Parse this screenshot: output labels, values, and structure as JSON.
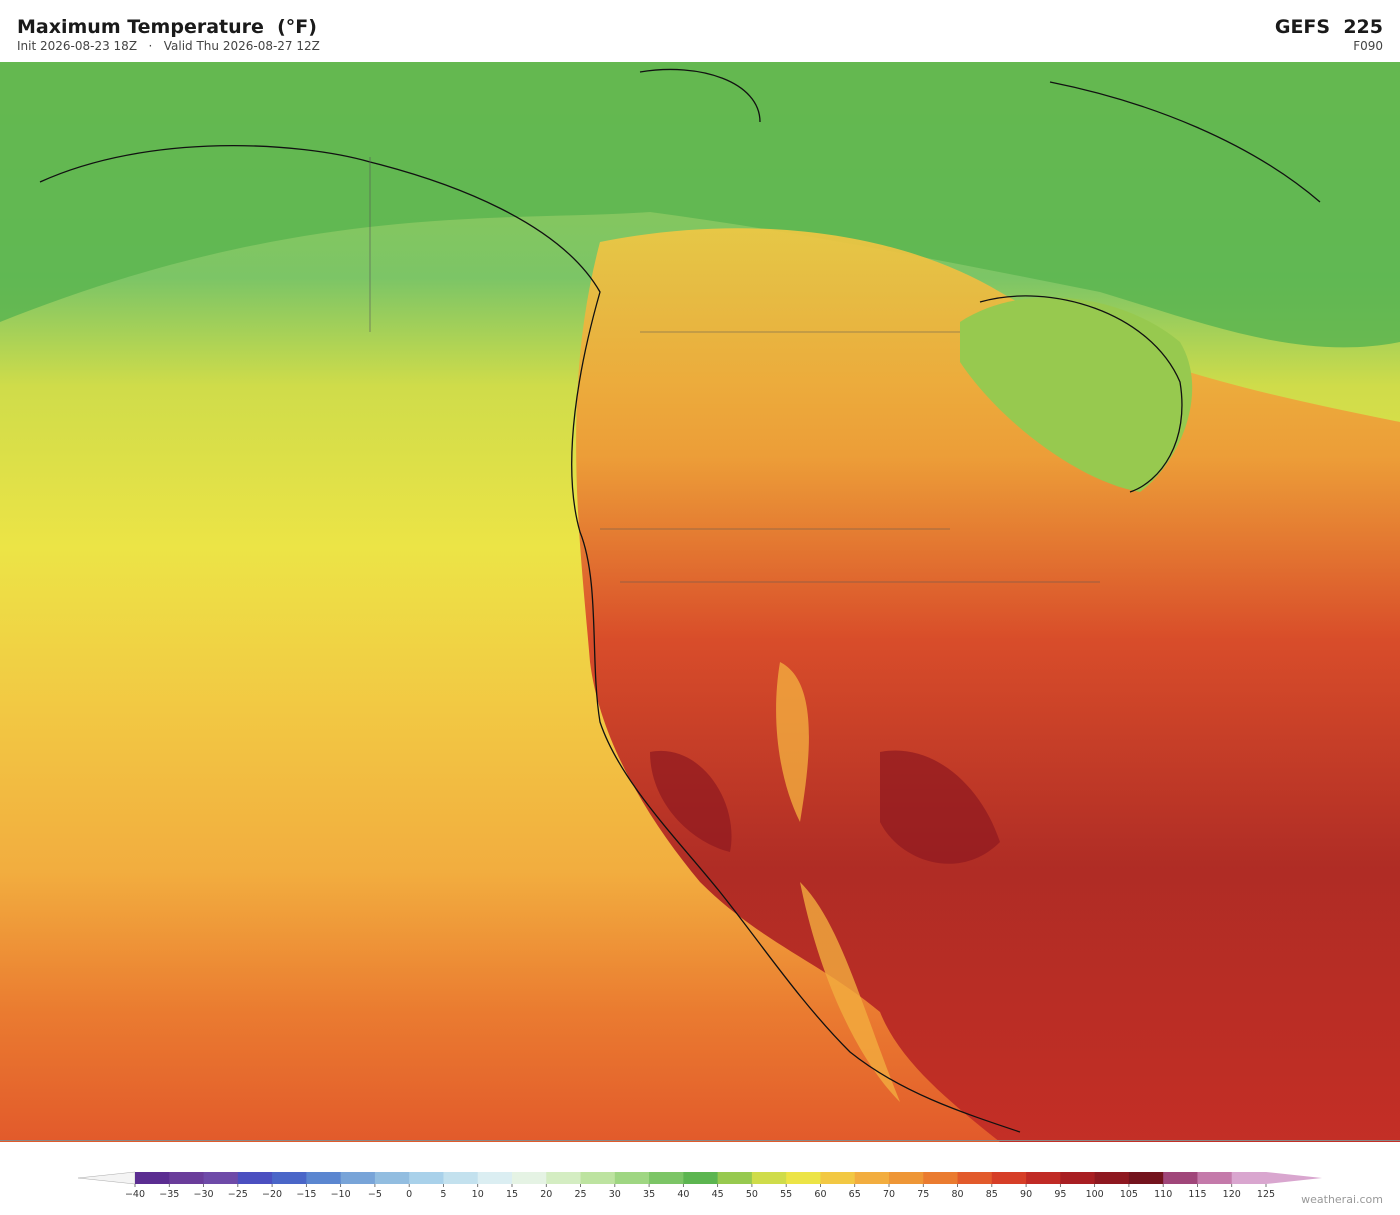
{
  "header": {
    "title": "Maximum Temperature  (°F)",
    "subtitle": "Init 2026-08-23 18Z   ·   Valid Thu 2026-08-27 12Z",
    "model": "GEFS  225",
    "forecast_hour": "F090"
  },
  "colorbar": {
    "ticks": [
      {
        "value": -40,
        "label": "−40"
      },
      {
        "value": -35,
        "label": "−35"
      },
      {
        "value": -30,
        "label": "−30"
      },
      {
        "value": -25,
        "label": "−25"
      },
      {
        "value": -20,
        "label": "−20"
      },
      {
        "value": -15,
        "label": "−15"
      },
      {
        "value": -10,
        "label": "−10"
      },
      {
        "value": -5,
        "label": "−5"
      },
      0,
      5,
      10,
      15,
      20,
      25,
      30,
      35,
      40,
      45,
      50,
      55,
      60,
      65,
      70,
      75,
      80,
      85,
      90,
      95,
      100,
      105,
      110,
      115,
      120,
      125
    ],
    "colors": [
      "#5b2d91",
      "#6a3d9a",
      "#6e4aa8",
      "#4b4fc0",
      "#4a66c8",
      "#5b86d0",
      "#78a4d8",
      "#92bde0",
      "#a9d1ea",
      "#c3e1ee",
      "#dbeef2",
      "#e5f3e4",
      "#d4edc2",
      "#bde3a0",
      "#9fd682",
      "#7cc566",
      "#5cb550",
      "#97c94f",
      "#cfdc4a",
      "#ece446",
      "#f2c843",
      "#f2ad3f",
      "#ee9636",
      "#ea7b30",
      "#e25a2b",
      "#d63e27",
      "#c02a25",
      "#a81e22",
      "#8e1820",
      "#73131d",
      "#a0467a",
      "#c47aaa",
      "#d9a6cf"
    ],
    "under_color": "#f4f4f4",
    "over_color": "#d9a6cf"
  },
  "footer": {
    "credit": "weatherai.com"
  }
}
